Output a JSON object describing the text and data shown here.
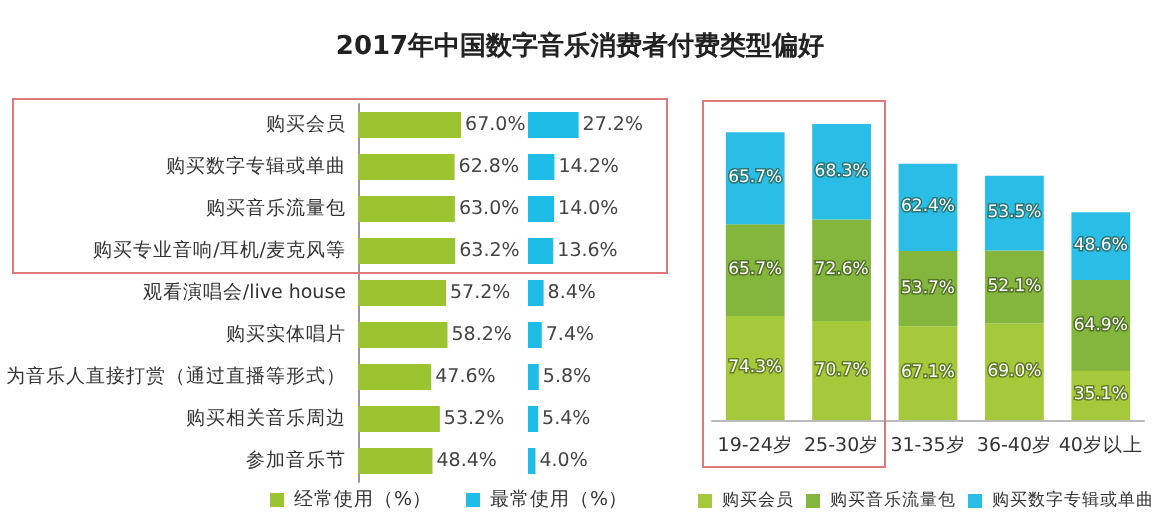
{
  "chart_data": [
    {
      "type": "bar",
      "orientation": "horizontal",
      "title": "2017年中国数字音乐消费者付费类型偏好",
      "legend": "bottom",
      "categories": [
        "购买会员",
        "购买数字专辑或单曲",
        "购买音乐流量包",
        "购买专业音响/耳机/麦克风等",
        "观看演唱会/live house",
        "购买实体唱片",
        "为音乐人直接打赏（通过直播等形式）",
        "购买相关音乐周边",
        "参加音乐节"
      ],
      "series": [
        {
          "name": "经常使用（%）",
          "color": "#9cc431",
          "values": [
            67.0,
            62.8,
            63.0,
            63.2,
            57.2,
            58.2,
            47.6,
            53.2,
            48.4
          ],
          "value_labels": [
            "67.0%",
            "62.8%",
            "63.0%",
            "63.2%",
            "57.2%",
            "58.2%",
            "47.6%",
            "53.2%",
            "48.4%"
          ]
        }
      ]
    },
    {
      "type": "bar",
      "orientation": "horizontal",
      "legend": "bottom",
      "categories": [
        null,
        null,
        null,
        null,
        null,
        null,
        null,
        null,
        null
      ],
      "series": [
        {
          "name": "最常使用（%）",
          "color": "#20bce8",
          "values": [
            27.2,
            14.2,
            14.0,
            13.6,
            8.4,
            7.4,
            5.8,
            5.4,
            4.0
          ],
          "value_labels": [
            "27.2%",
            "14.2%",
            "14.0%",
            "13.6%",
            "8.4%",
            "7.4%",
            "5.8%",
            "5.4%",
            "4.0%"
          ]
        }
      ]
    },
    {
      "type": "bar",
      "stacked": true,
      "legend": "bottom",
      "categories": [
        "19-24岁",
        "25-30岁",
        "31-35岁",
        "36-40岁",
        "40岁以上"
      ],
      "series": [
        {
          "name": "购买会员",
          "color": "#a6c93b",
          "values": [
            74.3,
            70.7,
            67.1,
            69.0,
            35.1
          ],
          "value_labels": [
            "74.3%",
            "70.7%",
            "67.1%",
            "69.0%",
            "35.1%"
          ]
        },
        {
          "name": "购买音乐流量包",
          "color": "#84b53c",
          "values": [
            65.7,
            72.6,
            53.7,
            52.1,
            64.9
          ],
          "value_labels": [
            "65.7%",
            "72.6%",
            "53.7%",
            "52.1%",
            "64.9%"
          ]
        },
        {
          "name": "购买数字专辑或单曲",
          "color": "#2abde6",
          "values": [
            65.7,
            68.3,
            62.4,
            53.5,
            48.6
          ],
          "value_labels": [
            "65.7%",
            "68.3%",
            "62.4%",
            "53.5%",
            "48.6%"
          ]
        }
      ]
    }
  ]
}
